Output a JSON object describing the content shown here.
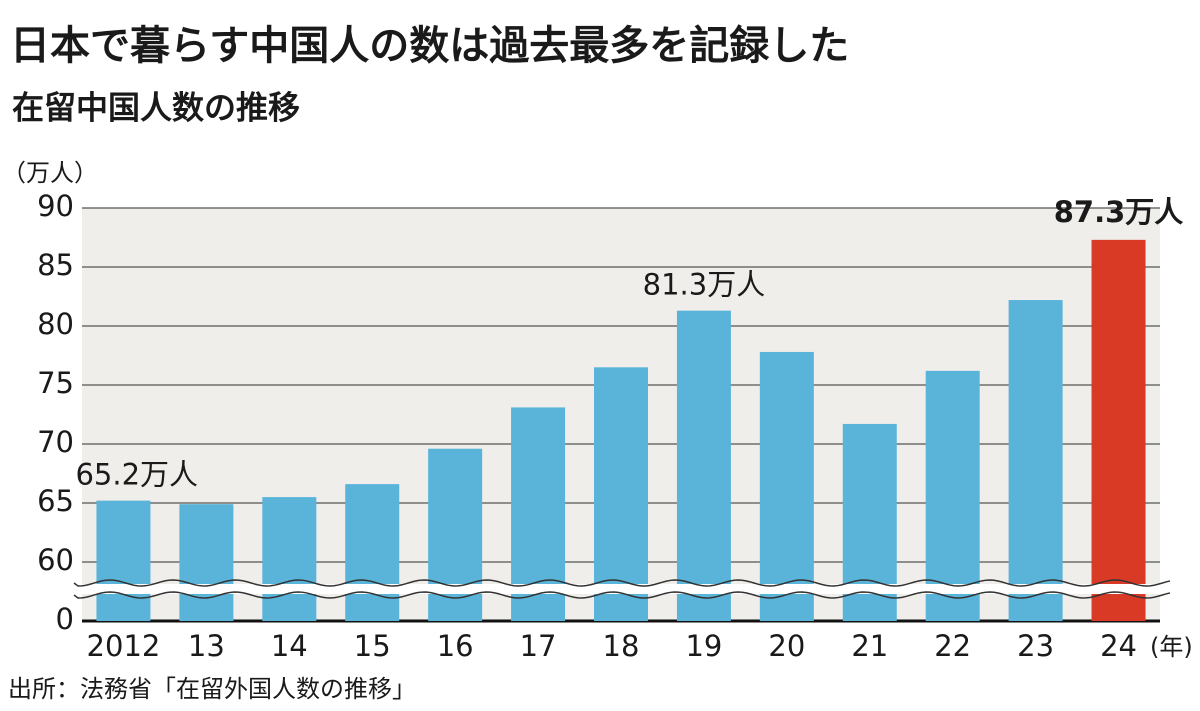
{
  "chart_data": {
    "type": "bar",
    "title": "日本で暮らす中国人の数は過去最多を記録した",
    "subtitle": "在留中国人数の推移",
    "y_unit": "（万人）",
    "x_unit": "(年)",
    "source": "出所：法務省「在留外国人数の推移」",
    "categories": [
      "2012",
      "13",
      "14",
      "15",
      "16",
      "17",
      "18",
      "19",
      "20",
      "21",
      "22",
      "23",
      "24"
    ],
    "values": [
      65.2,
      64.9,
      65.5,
      66.6,
      69.6,
      73.1,
      76.5,
      81.3,
      77.8,
      71.7,
      76.2,
      82.2,
      87.3
    ],
    "value_labels": [
      "65.2万人",
      null,
      null,
      null,
      null,
      null,
      null,
      "81.3万人",
      null,
      null,
      null,
      null,
      "87.3万人"
    ],
    "colors": [
      "#5ab4da",
      "#5ab4da",
      "#5ab4da",
      "#5ab4da",
      "#5ab4da",
      "#5ab4da",
      "#5ab4da",
      "#5ab4da",
      "#5ab4da",
      "#5ab4da",
      "#5ab4da",
      "#5ab4da",
      "#d83a26"
    ],
    "ylim": [
      0,
      90
    ],
    "yticks": [
      0,
      60,
      65,
      70,
      75,
      80,
      85,
      90
    ],
    "broken_axis": true,
    "grid": true
  }
}
